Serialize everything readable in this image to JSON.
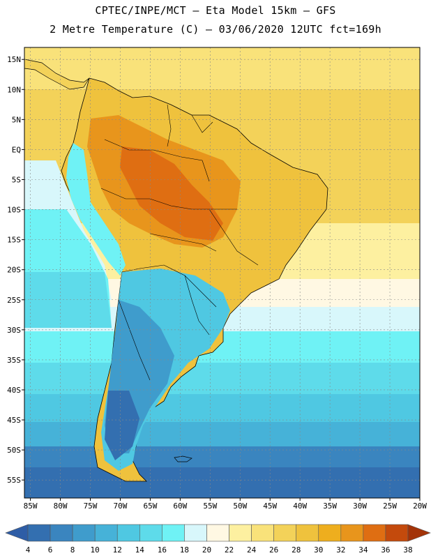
{
  "header": {
    "line1": "CPTEC/INPE/MCT –  Eta Model 15km – GFS",
    "line2": "2 Metre Temperature (C) – 03/06/2020 12UTC fct=169h"
  },
  "axes": {
    "lat_labels": [
      "15N",
      "10N",
      "5N",
      "EQ",
      "5S",
      "10S",
      "15S",
      "20S",
      "25S",
      "30S",
      "35S",
      "40S",
      "45S",
      "50S",
      "55S"
    ],
    "lat_values": [
      15,
      10,
      5,
      0,
      -5,
      -10,
      -15,
      -20,
      -25,
      -30,
      -35,
      -40,
      -45,
      -50,
      -55
    ],
    "lon_labels": [
      "85W",
      "80W",
      "75W",
      "70W",
      "65W",
      "60W",
      "55W",
      "50W",
      "45W",
      "40W",
      "35W",
      "30W",
      "25W",
      "20W"
    ],
    "lon_values": [
      -85,
      -80,
      -75,
      -70,
      -65,
      -60,
      -55,
      -50,
      -45,
      -40,
      -35,
      -30,
      -25,
      -20
    ],
    "lat_range": [
      -58,
      17
    ],
    "lon_range": [
      -86,
      -20
    ]
  },
  "colorbar": {
    "labels": [
      "4",
      "6",
      "8",
      "10",
      "12",
      "14",
      "16",
      "18",
      "20",
      "22",
      "24",
      "26",
      "28",
      "30",
      "32",
      "34",
      "36",
      "38"
    ],
    "colors": [
      "#2e5da6",
      "#336fb0",
      "#3a85bf",
      "#3f9ccc",
      "#46b2d8",
      "#4fc8e2",
      "#5edbea",
      "#6ff2f5",
      "#d8f7fb",
      "#fff8e3",
      "#fdf0a0",
      "#f9e27a",
      "#f3d259",
      "#efc23d",
      "#eeae1e",
      "#e8951c",
      "#df6e12",
      "#c44a0c",
      "#a33308"
    ]
  },
  "colors": {
    "grid": "#888888",
    "coast": "#000000",
    "frame": "#000000"
  }
}
